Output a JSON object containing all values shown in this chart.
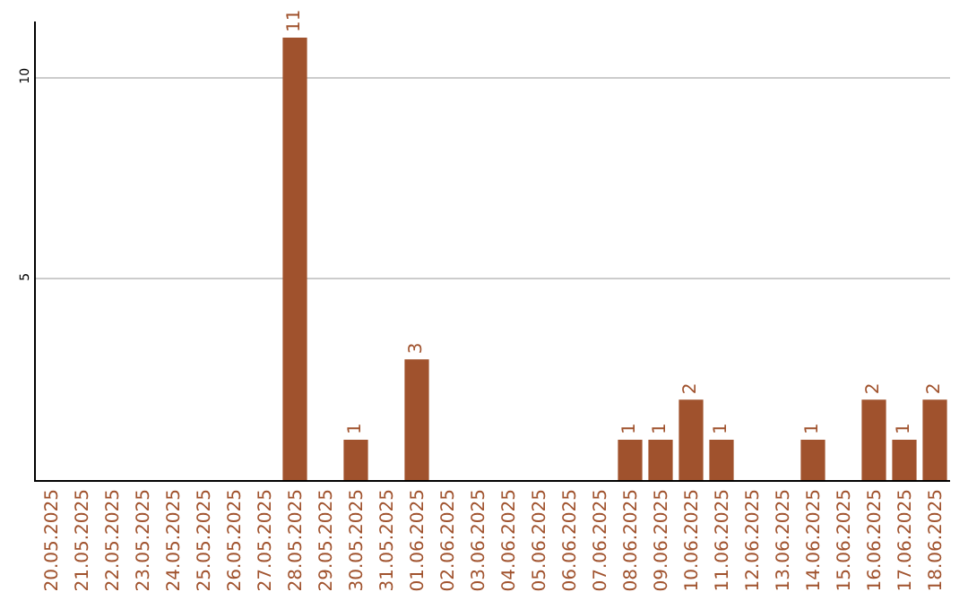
{
  "chart_data": {
    "type": "bar",
    "categories": [
      "20.05.2025",
      "21.05.2025",
      "22.05.2025",
      "23.05.2025",
      "24.05.2025",
      "25.05.2025",
      "26.05.2025",
      "27.05.2025",
      "28.05.2025",
      "29.05.2025",
      "30.05.2025",
      "31.05.2025",
      "01.06.2025",
      "02.06.2025",
      "03.06.2025",
      "04.06.2025",
      "05.06.2025",
      "06.06.2025",
      "07.06.2025",
      "08.06.2025",
      "09.06.2025",
      "10.06.2025",
      "11.06.2025",
      "12.06.2025",
      "13.06.2025",
      "14.06.2025",
      "15.06.2025",
      "16.06.2025",
      "17.06.2025",
      "18.06.2025"
    ],
    "values": [
      0,
      0,
      0,
      0,
      0,
      0,
      0,
      0,
      11,
      0,
      1,
      0,
      3,
      0,
      0,
      0,
      0,
      0,
      0,
      1,
      1,
      2,
      1,
      0,
      0,
      1,
      0,
      2,
      1,
      2
    ],
    "value_labels": [
      null,
      null,
      null,
      null,
      null,
      null,
      null,
      null,
      "11",
      null,
      "1",
      null,
      "3",
      null,
      null,
      null,
      null,
      null,
      null,
      "1",
      "1",
      "2",
      "1",
      null,
      null,
      "1",
      null,
      "2",
      "1",
      "2"
    ],
    "color": "#a0522d",
    "ylim": [
      0,
      11.4
    ],
    "yticks": [
      5,
      10
    ],
    "grid": "y",
    "legend": false
  }
}
